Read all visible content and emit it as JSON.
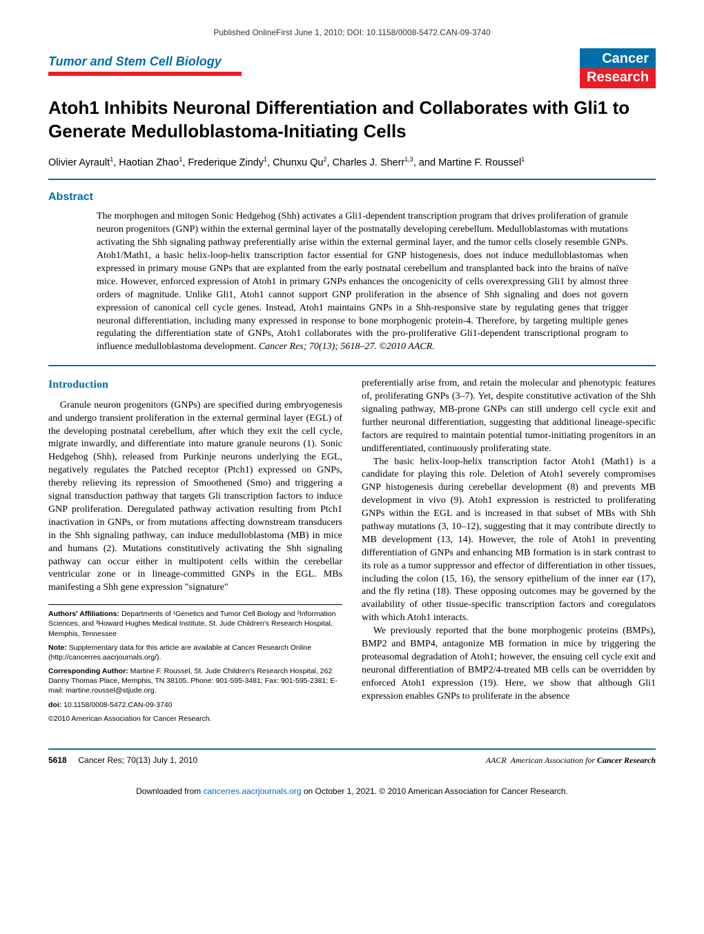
{
  "top_bar": "Published OnlineFirst June 1, 2010; DOI: 10.1158/0008-5472.CAN-09-3740",
  "section_header": "Tumor and Stem Cell Biology",
  "journal": {
    "line1": "Cancer",
    "line2": "Research"
  },
  "title": "Atoh1 Inhibits Neuronal Differentiation and Collaborates with Gli1 to Generate Medulloblastoma-Initiating Cells",
  "authors_html": "Olivier Ayrault<sup>1</sup>, Haotian Zhao<sup>1</sup>, Frederique Zindy<sup>1</sup>, Chunxu Qu<sup>2</sup>, Charles J. Sherr<sup>1,3</sup>, and Martine F. Roussel<sup>1</sup>",
  "abstract_heading": "Abstract",
  "abstract_body": "The morphogen and mitogen Sonic Hedgehog (Shh) activates a Gli1-dependent transcription program that drives proliferation of granule neuron progenitors (GNP) within the external germinal layer of the postnatally developing cerebellum. Medulloblastomas with mutations activating the Shh signaling pathway preferentially arise within the external germinal layer, and the tumor cells closely resemble GNPs. Atoh1/Math1, a basic helix-loop-helix transcription factor essential for GNP histogenesis, does not induce medulloblastomas when expressed in primary mouse GNPs that are explanted from the early postnatal cerebellum and transplanted back into the brains of naïve mice. However, enforced expression of Atoh1 in primary GNPs enhances the oncogenicity of cells overexpressing Gli1 by almost three orders of magnitude. Unlike Gli1, Atoh1 cannot support GNP proliferation in the absence of Shh signaling and does not govern expression of canonical cell cycle genes. Instead, Atoh1 maintains GNPs in a Shh-responsive state by regulating genes that trigger neuronal differentiation, including many expressed in response to bone morphogenic protein-4. Therefore, by targeting multiple genes regulating the differentiation state of GNPs, Atoh1 collaborates with the pro-proliferative Gli1-dependent transcriptional program to influence medulloblastoma development.",
  "abstract_cite": "Cancer Res; 70(13); 5618–27. ©2010 AACR.",
  "intro_heading": "Introduction",
  "col_left_p1": "Granule neuron progenitors (GNPs) are specified during embryogenesis and undergo transient proliferation in the external germinal layer (EGL) of the developing postnatal cerebellum, after which they exit the cell cycle, migrate inwardly, and differentiate into mature granule neurons (1). Sonic Hedgehog (Shh), released from Purkinje neurons underlying the EGL, negatively regulates the Patched receptor (Ptch1) expressed on GNPs, thereby relieving its repression of Smoothened (Smo) and triggering a signal transduction pathway that targets Gli transcription factors to induce GNP proliferation. Deregulated pathway activation resulting from Ptch1 inactivation in GNPs, or from mutations affecting downstream transducers in the Shh signaling pathway, can induce medulloblastoma (MB) in mice and humans (2). Mutations constitutively activating the Shh signaling pathway can occur either in multipotent cells within the cerebellar ventricular zone or in lineage-committed GNPs in the EGL. MBs manifesting a Shh gene expression \"signature\"",
  "col_right_p1": "preferentially arise from, and retain the molecular and phenotypic features of, proliferating GNPs (3–7). Yet, despite constitutive activation of the Shh signaling pathway, MB-prone GNPs can still undergo cell cycle exit and further neuronal differentiation, suggesting that additional lineage-specific factors are required to maintain potential tumor-initiating progenitors in an undifferentiated, continuously proliferating state.",
  "col_right_p2": "The basic helix-loop-helix transcription factor Atoh1 (Math1) is a candidate for playing this role. Deletion of Atoh1 severely compromises GNP histogenesis during cerebellar development (8) and prevents MB development in vivo (9). Atoh1 expression is restricted to proliferating GNPs within the EGL and is increased in that subset of MBs with Shh pathway mutations (3, 10–12), suggesting that it may contribute directly to MB development (13, 14). However, the role of Atoh1 in preventing differentiation of GNPs and enhancing MB formation is in stark contrast to its role as a tumor suppressor and effector of differentiation in other tissues, including the colon (15, 16), the sensory epithelium of the inner ear (17), and the fly retina (18). These opposing outcomes may be governed by the availability of other tissue-specific transcription factors and coregulators with which Atoh1 interacts.",
  "col_right_p3": "We previously reported that the bone morphogenic proteins (BMPs), BMP2 and BMP4, antagonize MB formation in mice by triggering the proteasomal degradation of Atoh1; however, the ensuing cell cycle exit and neuronal differentiation of BMP2/4-treated MB cells can be overridden by enforced Atoh1 expression (19). Here, we show that although Gli1 expression enables GNPs to proliferate in the absence",
  "footnotes": {
    "affiliations_label": "Authors' Affiliations:",
    "affiliations_text": " Departments of ¹Genetics and Tumor Cell Biology and ²Information Sciences, and ³Howard Hughes Medical Institute, St. Jude Children's Research Hospital, Memphis, Tennessee",
    "note_label": "Note:",
    "note_text": " Supplementary data for this article are available at Cancer Research Online (http://cancerres.aacrjournals.org/).",
    "corresponding_label": "Corresponding Author:",
    "corresponding_text": " Martine F. Roussel, St. Jude Children's Research Hospital, 262 Danny Thomas Place, Memphis, TN 38105. Phone: 901-595-3481; Fax: 901-595-2381; E-mail: martine.roussel@stjude.org.",
    "doi_label": "doi:",
    "doi_text": " 10.1158/0008-5472.CAN-09-3740",
    "copyright": "©2010 American Association for Cancer Research."
  },
  "footer": {
    "page_num": "5618",
    "journal_ref": "Cancer Res; 70(13) July 1, 2010",
    "aacr_prefix": "American Association for ",
    "aacr_bold": "Cancer Research"
  },
  "download_footer": {
    "prefix": "Downloaded from ",
    "link_text": "cancerres.aacrjournals.org",
    "suffix": " on October 1, 2021. © 2010 American Association for Cancer Research."
  },
  "colors": {
    "brand_blue": "#016ea7",
    "brand_red": "#ed1c24",
    "link_blue": "#0066cc"
  }
}
